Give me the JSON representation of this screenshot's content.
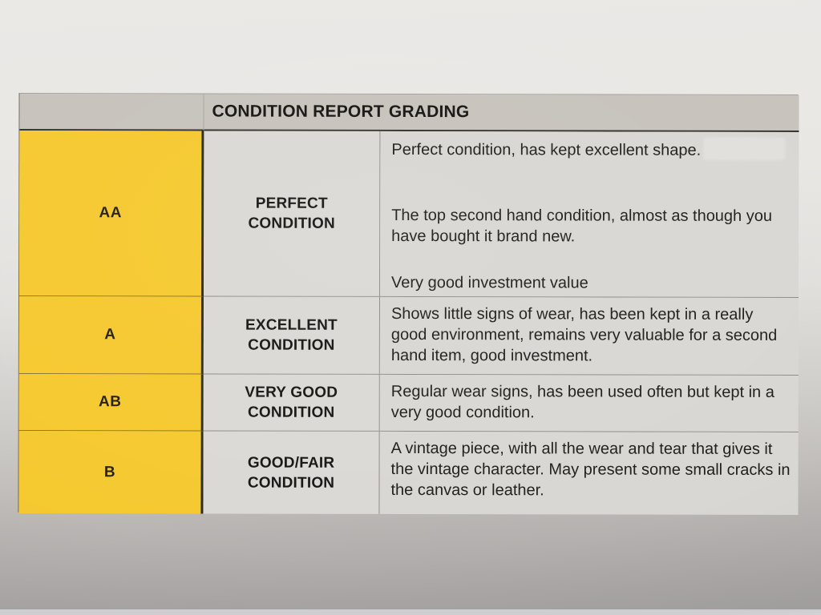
{
  "table": {
    "title": "CONDITION REPORT GRADING",
    "rows": [
      {
        "code": "AA",
        "name_lines": [
          "PERFECT",
          "CONDITION"
        ],
        "paragraphs": [
          "Perfect condition, has kept excellent shape.",
          "The top second hand condition, almost as though you have bought it brand new.",
          "Very good investment value"
        ]
      },
      {
        "code": "A",
        "name_lines": [
          "EXCELLENT",
          "CONDITION"
        ],
        "paragraphs": [
          "Shows little signs of wear, has been kept in a really good environment, remains very valuable for a second hand item, good investment."
        ]
      },
      {
        "code": "AB",
        "name_lines": [
          "VERY GOOD",
          "CONDITION"
        ],
        "paragraphs": [
          "Regular wear signs, has been used often but kept in a very good condition."
        ]
      },
      {
        "code": "B",
        "name_lines": [
          "GOOD/FAIR",
          "CONDITION"
        ],
        "paragraphs": [
          "A vintage piece, with all the wear and tear that gives it the vintage character. May present some small cracks in the canvas or leather."
        ]
      }
    ]
  },
  "colors": {
    "grade_column": "#f5c930",
    "header_band": "#c7c3bc",
    "cell_bg": "#dbd9d5",
    "cell_bg2": "#d9d7d3",
    "text": "#1c1b19"
  }
}
